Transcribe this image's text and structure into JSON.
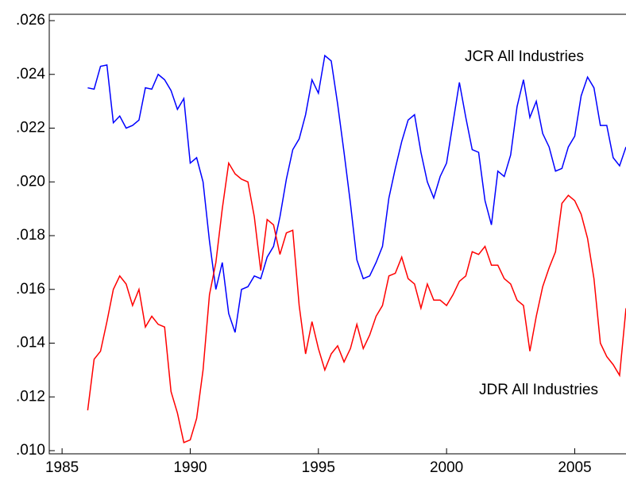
{
  "chart_data": {
    "type": "line",
    "x": [
      1986.0,
      1986.25,
      1986.5,
      1986.75,
      1987.0,
      1987.25,
      1987.5,
      1987.75,
      1988.0,
      1988.25,
      1988.5,
      1988.75,
      1989.0,
      1989.25,
      1989.5,
      1989.75,
      1990.0,
      1990.25,
      1990.5,
      1990.75,
      1991.0,
      1991.25,
      1991.5,
      1991.75,
      1992.0,
      1992.25,
      1992.5,
      1992.75,
      1993.0,
      1993.25,
      1993.5,
      1993.75,
      1994.0,
      1994.25,
      1994.5,
      1994.75,
      1995.0,
      1995.25,
      1995.5,
      1995.75,
      1996.0,
      1996.25,
      1996.5,
      1996.75,
      1997.0,
      1997.25,
      1997.5,
      1997.75,
      1998.0,
      1998.25,
      1998.5,
      1998.75,
      1999.0,
      1999.25,
      1999.5,
      1999.75,
      2000.0,
      2000.25,
      2000.5,
      2000.75,
      2001.0,
      2001.25,
      2001.5,
      2001.75,
      2002.0,
      2002.25,
      2002.5,
      2002.75,
      2003.0,
      2003.25,
      2003.5,
      2003.75,
      2004.0,
      2004.25,
      2004.5,
      2004.75,
      2005.0,
      2005.25,
      2005.5,
      2005.75,
      2006.0,
      2006.25,
      2006.5,
      2006.75,
      2007.0
    ],
    "series": [
      {
        "name": "JCR All Industries",
        "color": "#0000ff",
        "values": [
          0.0235,
          0.02345,
          0.0243,
          0.02435,
          0.0222,
          0.02245,
          0.022,
          0.0221,
          0.0223,
          0.0235,
          0.02345,
          0.024,
          0.0238,
          0.0234,
          0.0227,
          0.0231,
          0.0207,
          0.0209,
          0.02,
          0.0178,
          0.016,
          0.017,
          0.0151,
          0.0144,
          0.016,
          0.0161,
          0.0165,
          0.0164,
          0.0172,
          0.0176,
          0.0187,
          0.0201,
          0.0212,
          0.0216,
          0.0225,
          0.0238,
          0.0233,
          0.0247,
          0.0245,
          0.0229,
          0.0211,
          0.0192,
          0.0171,
          0.0164,
          0.0165,
          0.017,
          0.0176,
          0.0194,
          0.0205,
          0.0215,
          0.0223,
          0.0225,
          0.0211,
          0.02,
          0.0194,
          0.0202,
          0.0207,
          0.0222,
          0.0237,
          0.0224,
          0.0212,
          0.0211,
          0.0193,
          0.0184,
          0.0204,
          0.0202,
          0.021,
          0.0228,
          0.0238,
          0.0224,
          0.023,
          0.0218,
          0.0213,
          0.0204,
          0.0205,
          0.0213,
          0.0217,
          0.0232,
          0.0239,
          0.0235,
          0.0221,
          0.0221,
          0.0209,
          0.0206,
          0.0213
        ]
      },
      {
        "name": "JDR All Industries",
        "color": "#ff0000",
        "values": [
          0.0115,
          0.0134,
          0.0137,
          0.0148,
          0.016,
          0.0165,
          0.0162,
          0.0154,
          0.016,
          0.0146,
          0.015,
          0.0147,
          0.0146,
          0.0122,
          0.0114,
          0.0103,
          0.0104,
          0.0112,
          0.013,
          0.0158,
          0.017,
          0.019,
          0.0207,
          0.0203,
          0.0201,
          0.02,
          0.0187,
          0.0167,
          0.0186,
          0.0184,
          0.0173,
          0.0181,
          0.0182,
          0.0154,
          0.0136,
          0.0148,
          0.0138,
          0.013,
          0.0136,
          0.0139,
          0.0133,
          0.0138,
          0.0147,
          0.0138,
          0.0143,
          0.015,
          0.0154,
          0.0165,
          0.0166,
          0.0172,
          0.0164,
          0.0162,
          0.0153,
          0.0162,
          0.0156,
          0.0156,
          0.0154,
          0.0158,
          0.0163,
          0.0165,
          0.0174,
          0.0173,
          0.0176,
          0.0169,
          0.0169,
          0.0164,
          0.0162,
          0.0156,
          0.0154,
          0.0137,
          0.015,
          0.0161,
          0.0168,
          0.0174,
          0.0192,
          0.0195,
          0.0193,
          0.0188,
          0.0179,
          0.0164,
          0.014,
          0.0135,
          0.0132,
          0.0128,
          0.0153
        ]
      }
    ],
    "xlim": [
      1984.5,
      2007.0
    ],
    "xticks": [
      1985,
      1990,
      1995,
      2000,
      2005
    ],
    "ylim": [
      0.01,
      0.026
    ],
    "yticks": [
      {
        "value": 0.01,
        "label": ".010"
      },
      {
        "value": 0.012,
        "label": ".012"
      },
      {
        "value": 0.014,
        "label": ".014"
      },
      {
        "value": 0.016,
        "label": ".016"
      },
      {
        "value": 0.018,
        "label": ".018"
      },
      {
        "value": 0.02,
        "label": ".020"
      },
      {
        "value": 0.022,
        "label": ".022"
      },
      {
        "value": 0.024,
        "label": ".024"
      },
      {
        "value": 0.026,
        "label": ".026"
      }
    ]
  }
}
